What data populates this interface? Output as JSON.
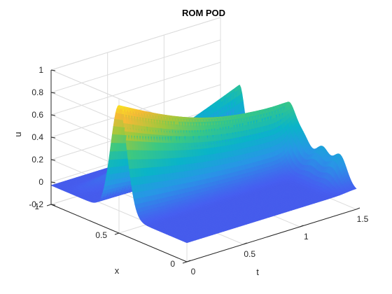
{
  "chart_data": {
    "type": "surface",
    "title": "ROM POD",
    "xlabel": "t",
    "ylabel": "x",
    "zlabel": "u",
    "xlim": [
      0,
      1.5
    ],
    "ylim": [
      0,
      1
    ],
    "zlim": [
      -0.2,
      1
    ],
    "xticks": [
      "0",
      "0.5",
      "1",
      "1.5"
    ],
    "yticks": [
      "0",
      "0.5",
      "1"
    ],
    "zticks": [
      "-0.2",
      "0",
      "0.2",
      "0.4",
      "0.6",
      "0.8",
      "1"
    ],
    "grid": true,
    "colormap": "parula",
    "surface": {
      "t_range": [
        0,
        1.5
      ],
      "x_range": [
        0,
        1
      ],
      "description_points": [
        {
          "t": 0,
          "x": 0.5,
          "u": 0.93
        },
        {
          "t": 0.2,
          "x": 0.5,
          "u": 0.9
        },
        {
          "t": 1.5,
          "x": 0.5,
          "u": 0.48
        },
        {
          "t": 1.5,
          "x": 0.8,
          "u": 0.48
        },
        {
          "t": 1.5,
          "x": 0.9,
          "u": 0.55
        }
      ]
    }
  }
}
